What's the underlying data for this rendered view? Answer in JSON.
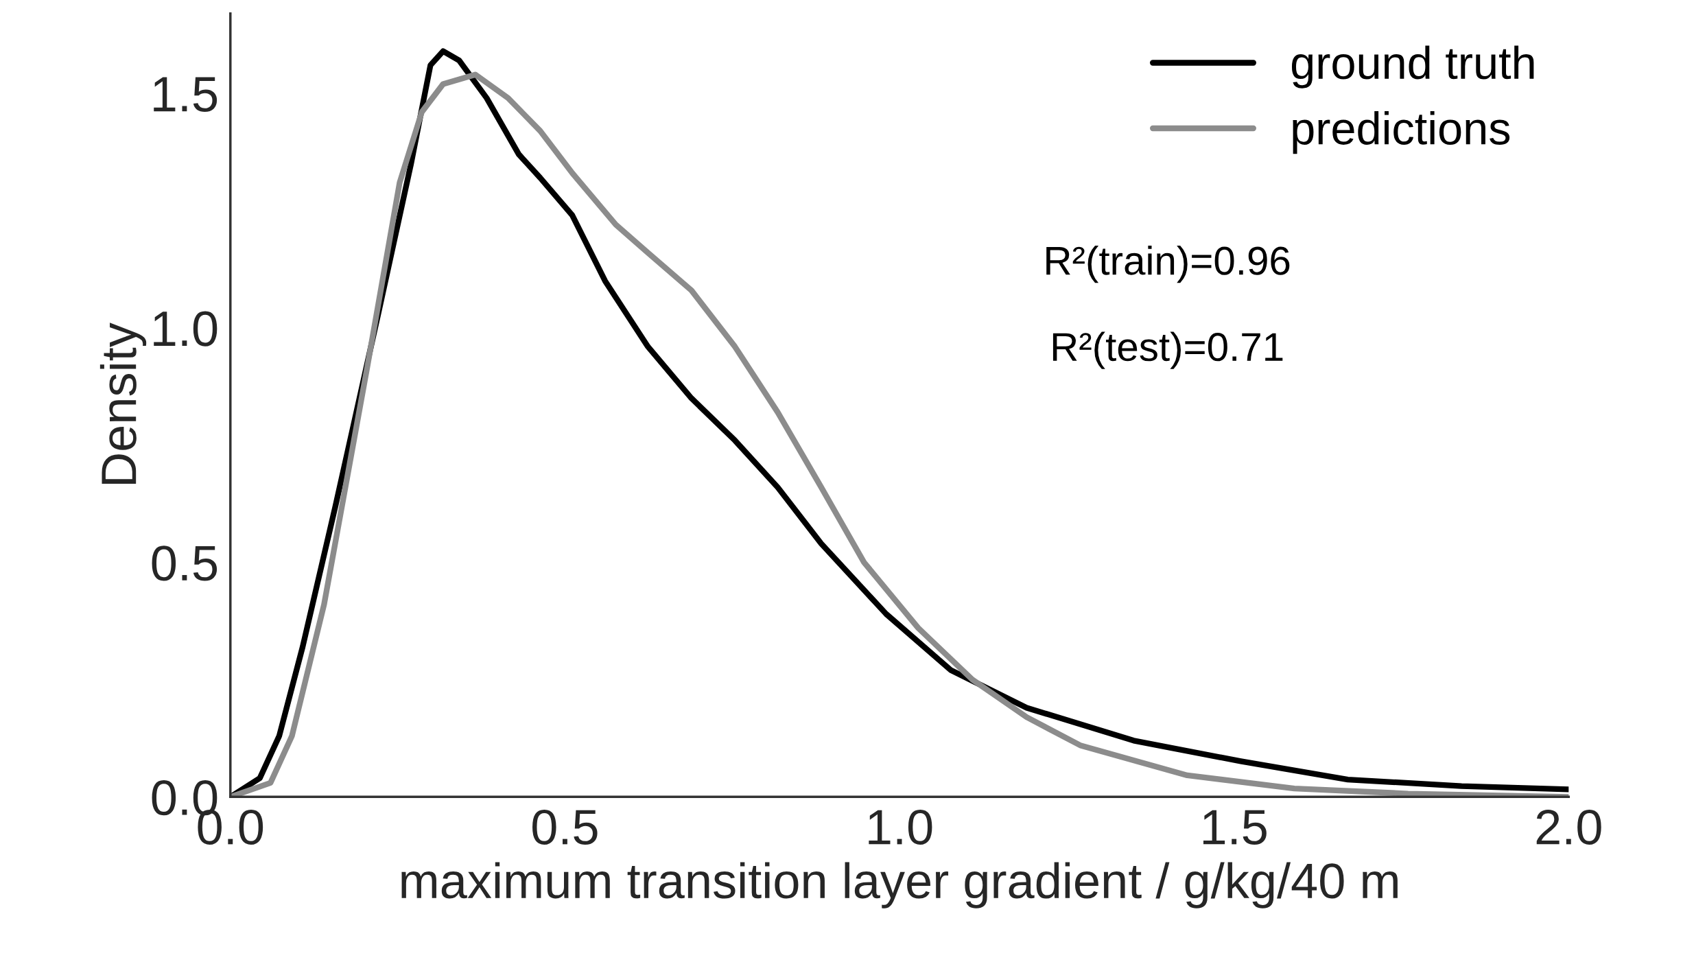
{
  "chart_data": {
    "type": "line",
    "xlabel": "maximum transition layer gradient / g/kg/40 m",
    "ylabel": "Density",
    "xlim": [
      0,
      2.0
    ],
    "ylim": [
      0,
      1.67
    ],
    "xticks": [
      {
        "value": 0,
        "label": "0.0"
      },
      {
        "value": 0.5,
        "label": "0.5"
      },
      {
        "value": 1.0,
        "label": "1.0"
      },
      {
        "value": 1.5,
        "label": "1.5"
      },
      {
        "value": 2.0,
        "label": "2.0"
      }
    ],
    "yticks": [
      {
        "value": 0,
        "label": "0.0"
      },
      {
        "value": 0.5,
        "label": "0.5"
      },
      {
        "value": 1.0,
        "label": "1.0"
      },
      {
        "value": 1.5,
        "label": "1.5"
      }
    ],
    "grid": false,
    "legend": "top right",
    "annotations": [
      "R²(train)=0.96",
      "R²(test)=0.71"
    ],
    "series": [
      {
        "name": "ground truth",
        "color": "#000000",
        "x": [
          0,
          0.044,
          0.073,
          0.108,
          0.157,
          0.221,
          0.27,
          0.299,
          0.318,
          0.342,
          0.383,
          0.431,
          0.463,
          0.511,
          0.56,
          0.624,
          0.689,
          0.754,
          0.818,
          0.883,
          0.98,
          1.077,
          1.19,
          1.35,
          1.51,
          1.67,
          1.84,
          2.0
        ],
        "values": [
          0,
          0.04,
          0.13,
          0.32,
          0.62,
          1.03,
          1.35,
          1.56,
          1.59,
          1.57,
          1.49,
          1.37,
          1.32,
          1.24,
          1.1,
          0.96,
          0.85,
          0.76,
          0.66,
          0.54,
          0.39,
          0.27,
          0.19,
          0.12,
          0.076,
          0.037,
          0.023,
          0.016
        ]
      },
      {
        "name": "predictions",
        "color": "#8c8c8c",
        "x": [
          0,
          0.06,
          0.092,
          0.14,
          0.205,
          0.253,
          0.286,
          0.318,
          0.366,
          0.415,
          0.463,
          0.511,
          0.576,
          0.624,
          0.689,
          0.754,
          0.818,
          0.883,
          0.947,
          1.028,
          1.109,
          1.19,
          1.27,
          1.43,
          1.59,
          1.76,
          2.0
        ],
        "values": [
          0,
          0.03,
          0.13,
          0.41,
          0.92,
          1.31,
          1.46,
          1.52,
          1.54,
          1.49,
          1.42,
          1.33,
          1.22,
          1.16,
          1.08,
          0.96,
          0.82,
          0.66,
          0.5,
          0.36,
          0.25,
          0.17,
          0.11,
          0.046,
          0.018,
          0.007,
          0.0
        ]
      }
    ]
  }
}
